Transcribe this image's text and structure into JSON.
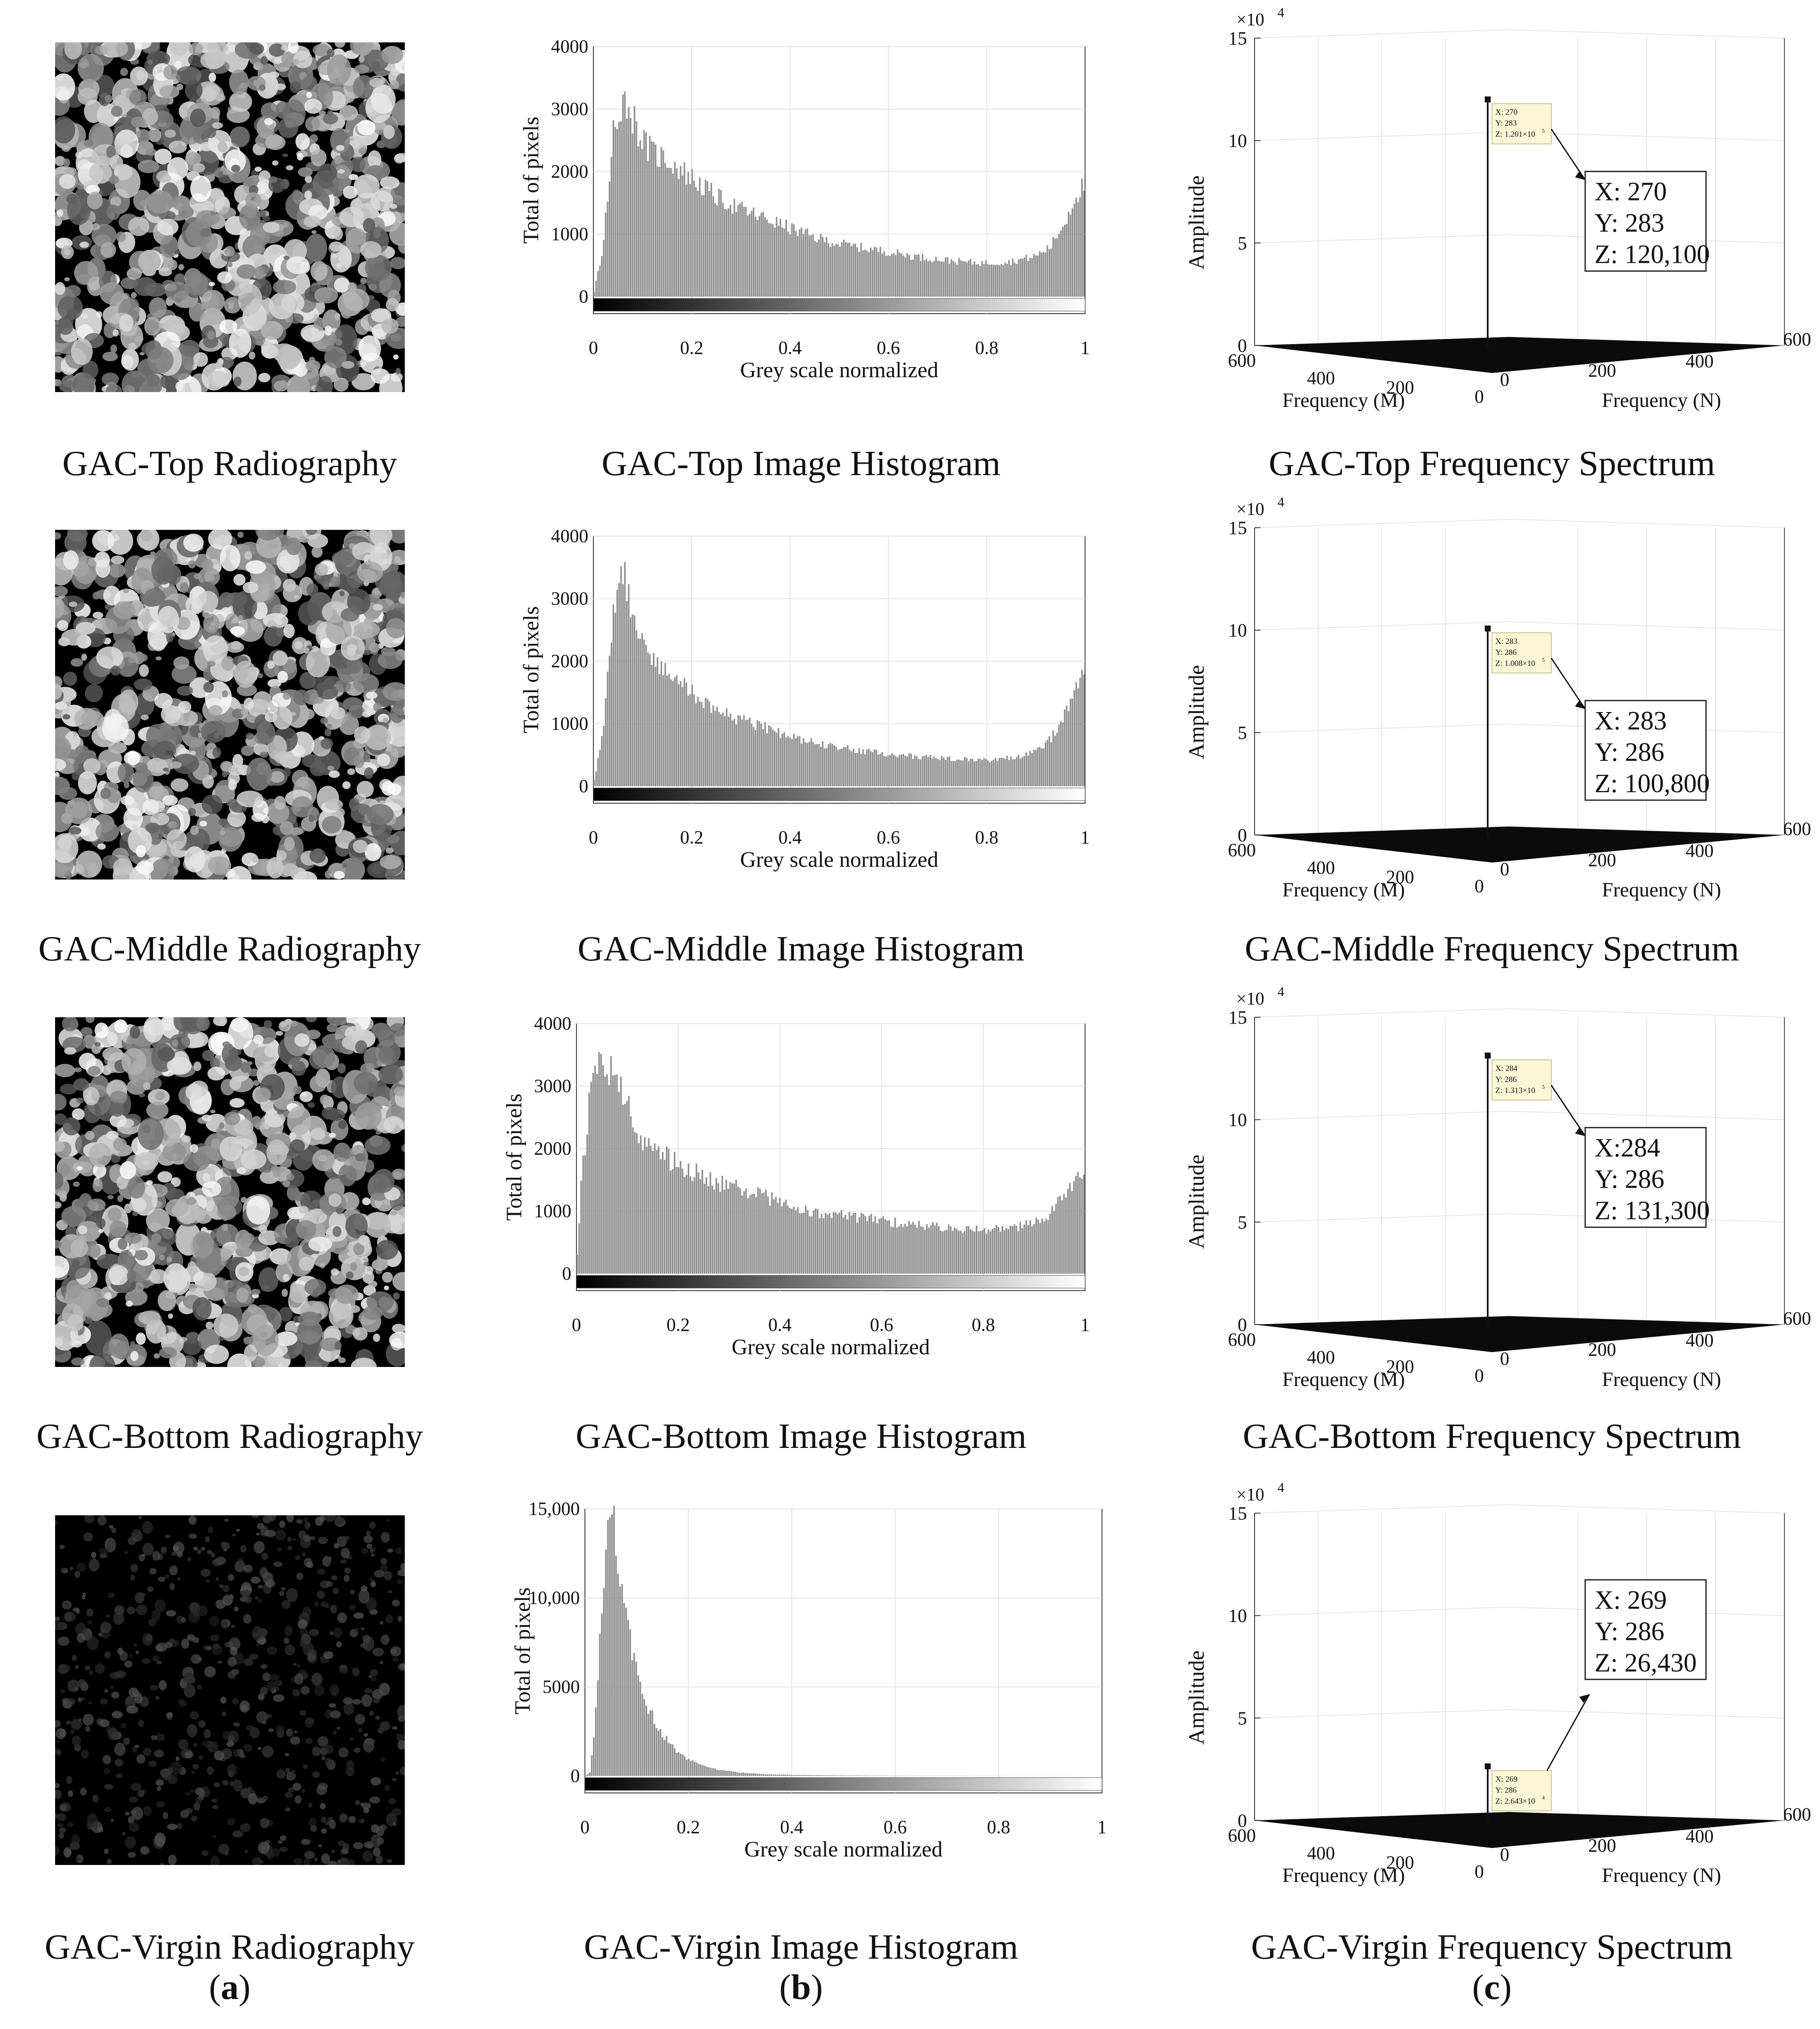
{
  "rows": [
    {
      "id": "top",
      "radiography_caption": "GAC-Top Radiography",
      "histogram_caption": "GAC-Top Image Histogram",
      "spectrum_caption": "GAC-Top Frequency Spectrum",
      "texture": "bright"
    },
    {
      "id": "middle",
      "radiography_caption": "GAC-Middle Radiography",
      "histogram_caption": "GAC-Middle Image Histogram",
      "spectrum_caption": "GAC-Middle Frequency Spectrum",
      "texture": "bright"
    },
    {
      "id": "bottom",
      "radiography_caption": "GAC-Bottom Radiography",
      "histogram_caption": "GAC-Bottom Image Histogram",
      "spectrum_caption": "GAC-Bottom Frequency Spectrum",
      "texture": "bright"
    },
    {
      "id": "virgin",
      "radiography_caption": "GAC-Virgin Radiography",
      "histogram_caption": "GAC-Virgin Image Histogram",
      "spectrum_caption": "GAC-Virgin Frequency Spectrum",
      "texture": "dark"
    }
  ],
  "panel_labels": {
    "a": "a",
    "b": "b",
    "c": "c"
  },
  "chart_data": [
    {
      "type": "bar",
      "panel": "GAC-Top Image Histogram",
      "xlabel": "Grey scale normalized",
      "ylabel": "Total of pixels",
      "xlim": [
        0,
        1
      ],
      "ylim": [
        0,
        4000
      ],
      "xticks": [
        "0",
        "0.2",
        "0.4",
        "0.6",
        "0.8",
        "1"
      ],
      "yticks": [
        "0",
        "1000",
        "2000",
        "3000",
        "4000"
      ],
      "grid": true,
      "profile_x": [
        0,
        0.02,
        0.04,
        0.06,
        0.08,
        0.1,
        0.12,
        0.15,
        0.2,
        0.25,
        0.3,
        0.35,
        0.4,
        0.45,
        0.5,
        0.55,
        0.6,
        0.65,
        0.7,
        0.75,
        0.8,
        0.85,
        0.9,
        0.93,
        0.96,
        0.98,
        1.0
      ],
      "profile_y": [
        0,
        800,
        2600,
        3200,
        2900,
        2500,
        2300,
        2200,
        1900,
        1600,
        1400,
        1250,
        1100,
        950,
        850,
        780,
        720,
        650,
        600,
        560,
        540,
        560,
        650,
        800,
        1200,
        1600,
        1800
      ]
    },
    {
      "type": "bar",
      "panel": "GAC-Middle Image Histogram",
      "xlabel": "Grey scale normalized",
      "ylabel": "Total of pixels",
      "xlim": [
        0,
        1
      ],
      "ylim": [
        0,
        4000
      ],
      "xticks": [
        "0",
        "0.2",
        "0.4",
        "0.6",
        "0.8",
        "1"
      ],
      "yticks": [
        "0",
        "1000",
        "2000",
        "3000",
        "4000"
      ],
      "grid": true,
      "profile_x": [
        0,
        0.02,
        0.04,
        0.06,
        0.08,
        0.1,
        0.12,
        0.15,
        0.2,
        0.25,
        0.3,
        0.35,
        0.4,
        0.45,
        0.5,
        0.55,
        0.6,
        0.65,
        0.7,
        0.75,
        0.8,
        0.85,
        0.9,
        0.93,
        0.96,
        0.98,
        1.0
      ],
      "profile_y": [
        0,
        900,
        2800,
        3400,
        2900,
        2300,
        2000,
        1800,
        1500,
        1200,
        1050,
        950,
        800,
        700,
        620,
        560,
        520,
        480,
        450,
        430,
        420,
        450,
        550,
        750,
        1150,
        1600,
        1950
      ]
    },
    {
      "type": "bar",
      "panel": "GAC-Bottom Image Histogram",
      "xlabel": "Grey scale normalized",
      "ylabel": "Total of pixels",
      "xlim": [
        0,
        1
      ],
      "ylim": [
        0,
        4000
      ],
      "xticks": [
        "0",
        "0.2",
        "0.4",
        "0.6",
        "0.8",
        "1"
      ],
      "yticks": [
        "0",
        "1000",
        "2000",
        "3000",
        "4000"
      ],
      "grid": true,
      "profile_x": [
        0,
        0.01,
        0.03,
        0.05,
        0.07,
        0.1,
        0.12,
        0.15,
        0.2,
        0.25,
        0.3,
        0.35,
        0.4,
        0.45,
        0.5,
        0.55,
        0.6,
        0.65,
        0.7,
        0.75,
        0.8,
        0.85,
        0.9,
        0.93,
        0.96,
        0.98,
        1.0
      ],
      "profile_y": [
        0,
        1500,
        3000,
        3450,
        3200,
        2700,
        2300,
        2000,
        1750,
        1550,
        1400,
        1300,
        1150,
        1000,
        950,
        900,
        850,
        800,
        760,
        720,
        700,
        720,
        800,
        950,
        1250,
        1500,
        1650
      ]
    },
    {
      "type": "bar",
      "panel": "GAC-Virgin Image Histogram",
      "xlabel": "Grey scale normalized",
      "ylabel": "Total of pixels",
      "xlim": [
        0,
        1
      ],
      "ylim": [
        0,
        15000
      ],
      "xticks": [
        "0",
        "0.2",
        "0.4",
        "0.6",
        "0.8",
        "1"
      ],
      "yticks": [
        "0",
        "5000",
        "10,000",
        "15,000"
      ],
      "grid": true,
      "profile_x": [
        0,
        0.01,
        0.02,
        0.03,
        0.04,
        0.05,
        0.06,
        0.07,
        0.08,
        0.1,
        0.12,
        0.14,
        0.16,
        0.18,
        0.2,
        0.25,
        0.3,
        0.35,
        0.4,
        0.5,
        0.6,
        0.8,
        1.0
      ],
      "profile_y": [
        0,
        200,
        3000,
        8000,
        12000,
        14500,
        13500,
        11000,
        9000,
        6000,
        4000,
        2800,
        2000,
        1300,
        900,
        400,
        200,
        100,
        60,
        30,
        15,
        5,
        0
      ]
    },
    {
      "type": "scatter",
      "panel": "GAC-Top Frequency Spectrum",
      "xlabel": "Frequency (M)",
      "ylabel": "Frequency (N)",
      "zlabel": "Amplitude",
      "multiplier": "×10",
      "multiplier_exp": "4",
      "zlim": [
        0,
        15
      ],
      "zticks": [
        "0",
        "5",
        "10",
        "15"
      ],
      "mticks": [
        "600",
        "400",
        "200",
        "0"
      ],
      "nticks": [
        "0",
        "200",
        "400",
        "600"
      ],
      "peak": {
        "X": 270,
        "Y": 283,
        "Z": 120100,
        "z_scaled": 12.01
      },
      "datatip": {
        "x": "X: 270",
        "y": "Y: 283",
        "z": "Z: 1.201×10",
        "z_exp": "5"
      },
      "callout": {
        "x": "X: 270",
        "y": "Y: 283",
        "z": "Z: 120,100"
      },
      "callout_below": true
    },
    {
      "type": "scatter",
      "panel": "GAC-Middle Frequency Spectrum",
      "xlabel": "Frequency (M)",
      "ylabel": "Frequency (N)",
      "zlabel": "Amplitude",
      "multiplier": "×10",
      "multiplier_exp": "4",
      "zlim": [
        0,
        15
      ],
      "zticks": [
        "0",
        "5",
        "10",
        "15"
      ],
      "mticks": [
        "600",
        "400",
        "200",
        "0"
      ],
      "nticks": [
        "0",
        "200",
        "400",
        "600"
      ],
      "peak": {
        "X": 283,
        "Y": 286,
        "Z": 100800,
        "z_scaled": 10.08
      },
      "datatip": {
        "x": "X: 283",
        "y": "Y: 286",
        "z": "Z: 1.008×10",
        "z_exp": "5"
      },
      "callout": {
        "x": "X: 283",
        "y": "Y: 286",
        "z": "Z: 100,800"
      },
      "callout_below": true
    },
    {
      "type": "scatter",
      "panel": "GAC-Bottom Frequency Spectrum",
      "xlabel": "Frequency (M)",
      "ylabel": "Frequency (N)",
      "zlabel": "Amplitude",
      "multiplier": "×10",
      "multiplier_exp": "4",
      "zlim": [
        0,
        15
      ],
      "zticks": [
        "0",
        "5",
        "10",
        "15"
      ],
      "mticks": [
        "600",
        "400",
        "200",
        "0"
      ],
      "nticks": [
        "0",
        "200",
        "400",
        "600"
      ],
      "peak": {
        "X": 284,
        "Y": 286,
        "Z": 131300,
        "z_scaled": 13.13
      },
      "datatip": {
        "x": "X: 284",
        "y": "Y: 286",
        "z": "Z: 1.313×10",
        "z_exp": "5"
      },
      "callout": {
        "x": "X:284",
        "y": "Y: 286",
        "z": "Z: 131,300"
      },
      "callout_below": true
    },
    {
      "type": "scatter",
      "panel": "GAC-Virgin Frequency Spectrum",
      "xlabel": "Frequency (M)",
      "ylabel": "Frequency (N)",
      "zlabel": "Amplitude",
      "multiplier": "×10",
      "multiplier_exp": "4",
      "zlim": [
        0,
        15
      ],
      "zticks": [
        "0",
        "5",
        "10",
        "15"
      ],
      "mticks": [
        "600",
        "400",
        "200",
        "0"
      ],
      "nticks": [
        "0",
        "200",
        "400",
        "600"
      ],
      "peak": {
        "X": 269,
        "Y": 286,
        "Z": 26430,
        "z_scaled": 2.643
      },
      "datatip": {
        "x": "X: 269",
        "y": "Y: 286",
        "z": "Z: 2.643×10",
        "z_exp": "4"
      },
      "callout": {
        "x": "X: 269",
        "y": "Y: 286",
        "z": "Z: 26,430"
      },
      "callout_below": false
    }
  ]
}
